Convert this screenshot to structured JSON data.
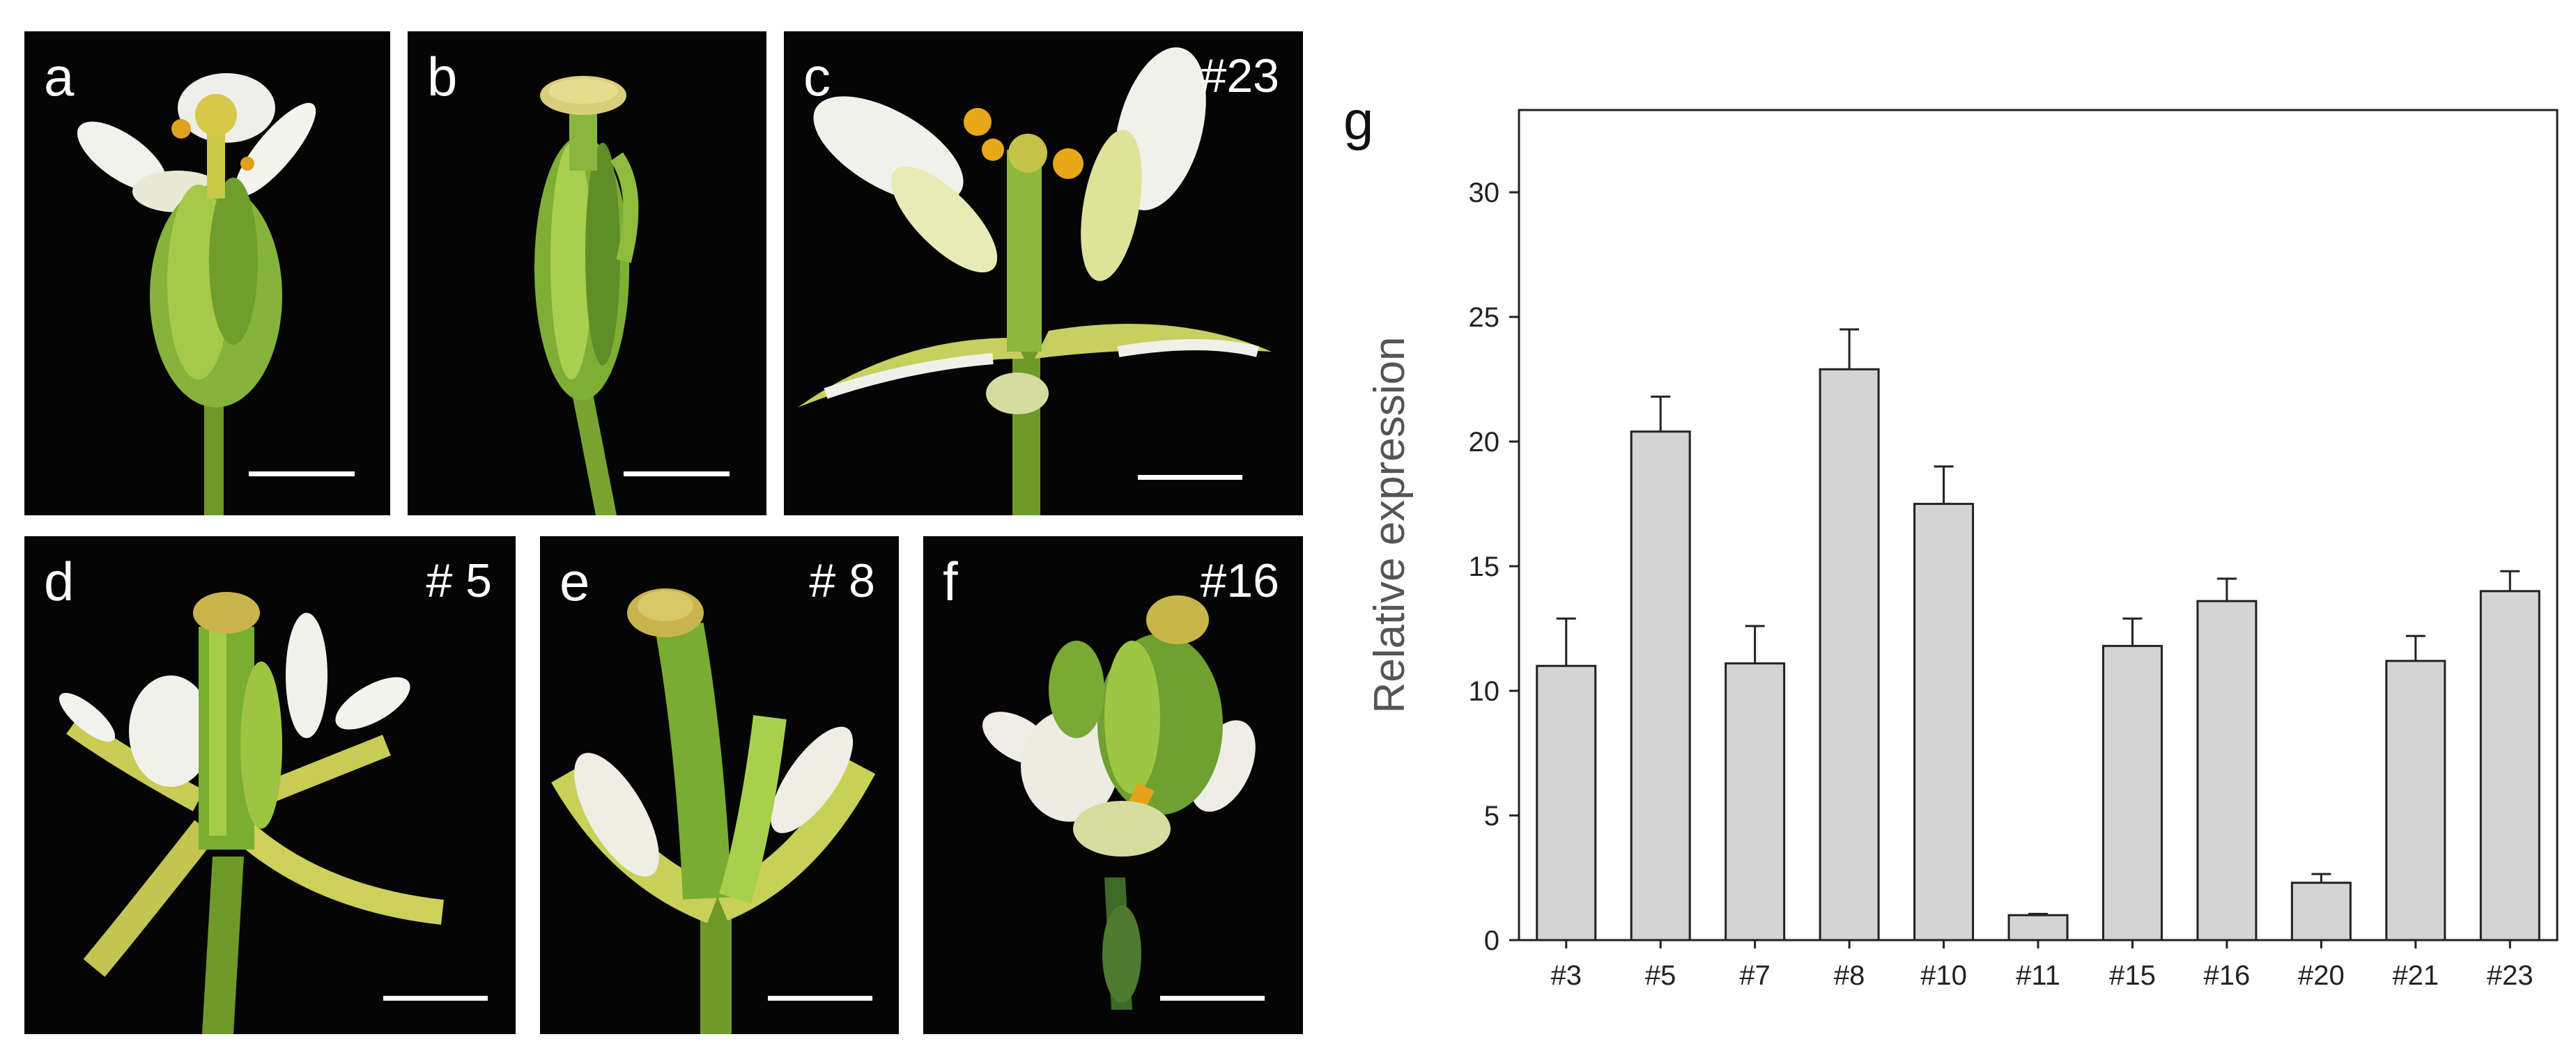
{
  "panels": [
    {
      "label": "a",
      "tag": ""
    },
    {
      "label": "b",
      "tag": ""
    },
    {
      "label": "c",
      "tag": "#23"
    },
    {
      "label": "d",
      "tag": "# 5"
    },
    {
      "label": "e",
      "tag": "# 8"
    },
    {
      "label": "f",
      "tag": "#16"
    }
  ],
  "chart_label": "g",
  "chart_data": {
    "type": "bar",
    "categories": [
      "#3",
      "#5",
      "#7",
      "#8",
      "#10",
      "#11",
      "#15",
      "#16",
      "#20",
      "#21",
      "#23"
    ],
    "values": [
      11.0,
      20.4,
      11.1,
      22.9,
      17.5,
      1.0,
      11.8,
      13.6,
      2.3,
      11.2,
      14.0
    ],
    "errors": [
      1.9,
      1.4,
      1.5,
      1.6,
      1.5,
      0.05,
      1.1,
      0.9,
      0.35,
      1.0,
      0.8
    ],
    "ylabel": "Relative expression",
    "ylim": [
      0,
      30
    ],
    "yticks": [
      0,
      5,
      10,
      15,
      20,
      25,
      30
    ],
    "grid": false,
    "bar_color": "#d4d4d4"
  }
}
